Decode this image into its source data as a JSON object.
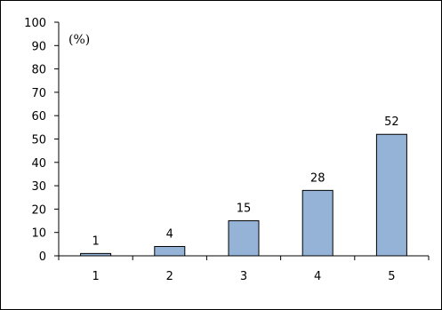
{
  "chart_data": {
    "type": "bar",
    "categories": [
      "1",
      "2",
      "3",
      "4",
      "5"
    ],
    "values": [
      1,
      4,
      15,
      28,
      52
    ],
    "data_labels": [
      "1",
      "4",
      "15",
      "28",
      "52"
    ],
    "unit_label": "(%)",
    "ylim": [
      0,
      100
    ],
    "yticks": [
      "0",
      "10",
      "20",
      "30",
      "40",
      "50",
      "60",
      "70",
      "80",
      "90",
      "100"
    ],
    "grid": false,
    "legend": "none",
    "bar_color": "#95B3D7",
    "bar_edge_color": "#000000"
  }
}
